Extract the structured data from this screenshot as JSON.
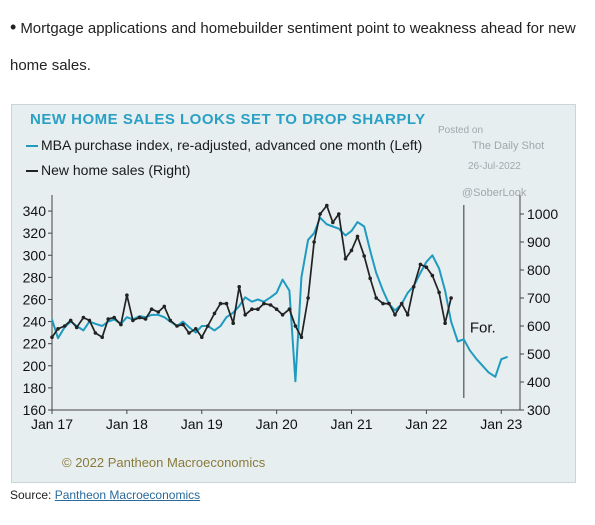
{
  "intro": {
    "bullet": "•",
    "text": "Mortgage applications and homebuilder sentiment point to weakness ahead for new home sales."
  },
  "source": {
    "label": "Source:",
    "link_text": "Pantheon Macroeconomics"
  },
  "watermark": {
    "posted_on": "Posted on",
    "brand": "The Daily Shot",
    "date": "26-Jul-2022",
    "handle": "@SoberLook"
  },
  "colors": {
    "mba": "#1f9bbf",
    "home_sales": "#222222",
    "title": "#2aa0c4",
    "background": "#e6eef0"
  },
  "chart_data": {
    "type": "line",
    "title": "NEW HOME SALES LOOKS SET TO DROP SHARPLY",
    "copyright": "© 2022 Pantheon Macroeconomics",
    "annotation": "For.",
    "x_tick_labels": [
      "Jan 17",
      "Jan 18",
      "Jan 19",
      "Jan 20",
      "Jan 21",
      "Jan 22",
      "Jan 23"
    ],
    "left_axis": {
      "ylim": [
        160,
        350
      ],
      "ticks": [
        160,
        180,
        200,
        220,
        240,
        260,
        280,
        300,
        320,
        340
      ]
    },
    "right_axis": {
      "ylim": [
        300,
        1050
      ],
      "ticks": [
        300,
        400,
        500,
        600,
        700,
        800,
        900,
        1000
      ]
    },
    "legend_placement": "top-left",
    "series": [
      {
        "name": "MBA purchase index, re-adjusted, advanced one month (Left)",
        "axis": "left",
        "x": [
          2017.0,
          2017.08,
          2017.17,
          2017.25,
          2017.33,
          2017.42,
          2017.5,
          2017.58,
          2017.67,
          2017.75,
          2017.83,
          2017.92,
          2018.0,
          2018.08,
          2018.17,
          2018.25,
          2018.33,
          2018.42,
          2018.5,
          2018.58,
          2018.67,
          2018.75,
          2018.83,
          2018.92,
          2019.0,
          2019.08,
          2019.17,
          2019.25,
          2019.33,
          2019.42,
          2019.5,
          2019.58,
          2019.67,
          2019.75,
          2019.83,
          2019.92,
          2020.0,
          2020.08,
          2020.17,
          2020.25,
          2020.33,
          2020.42,
          2020.5,
          2020.58,
          2020.67,
          2020.75,
          2020.83,
          2020.92,
          2021.0,
          2021.08,
          2021.17,
          2021.25,
          2021.33,
          2021.42,
          2021.5,
          2021.58,
          2021.67,
          2021.75,
          2021.83,
          2021.92,
          2022.0,
          2022.08,
          2022.17,
          2022.25,
          2022.33,
          2022.42,
          2022.5,
          2022.58,
          2022.67,
          2022.75,
          2022.83,
          2022.92,
          2023.0,
          2023.08
        ],
        "values": [
          242,
          225,
          235,
          240,
          236,
          232,
          240,
          238,
          236,
          240,
          242,
          238,
          244,
          242,
          245,
          244,
          246,
          246,
          244,
          240,
          236,
          240,
          235,
          230,
          236,
          236,
          232,
          236,
          244,
          248,
          254,
          262,
          258,
          260,
          258,
          262,
          266,
          278,
          268,
          186,
          280,
          314,
          320,
          334,
          328,
          326,
          324,
          318,
          322,
          330,
          326,
          304,
          284,
          268,
          256,
          250,
          256,
          266,
          272,
          284,
          294,
          300,
          288,
          268,
          240,
          222,
          224,
          214,
          206,
          200,
          194,
          190,
          206,
          208
        ]
      },
      {
        "name": "New home sales (Right)",
        "axis": "right",
        "x": [
          2017.0,
          2017.08,
          2017.17,
          2017.25,
          2017.33,
          2017.42,
          2017.5,
          2017.58,
          2017.67,
          2017.75,
          2017.83,
          2017.92,
          2018.0,
          2018.08,
          2018.17,
          2018.25,
          2018.33,
          2018.42,
          2018.5,
          2018.58,
          2018.67,
          2018.75,
          2018.83,
          2018.92,
          2019.0,
          2019.08,
          2019.17,
          2019.25,
          2019.33,
          2019.42,
          2019.5,
          2019.58,
          2019.67,
          2019.75,
          2019.83,
          2019.92,
          2020.0,
          2020.08,
          2020.17,
          2020.25,
          2020.33,
          2020.42,
          2020.5,
          2020.58,
          2020.67,
          2020.75,
          2020.83,
          2020.92,
          2021.0,
          2021.08,
          2021.17,
          2021.25,
          2021.33,
          2021.42,
          2021.5,
          2021.58,
          2021.67,
          2021.75,
          2021.83,
          2021.92,
          2022.0,
          2022.08,
          2022.17,
          2022.25,
          2022.33
        ],
        "values": [
          560,
          590,
          600,
          620,
          595,
          630,
          620,
          575,
          560,
          625,
          630,
          605,
          710,
          620,
          630,
          625,
          660,
          650,
          670,
          620,
          600,
          605,
          575,
          590,
          560,
          600,
          645,
          680,
          680,
          610,
          740,
          640,
          660,
          660,
          680,
          675,
          660,
          640,
          660,
          600,
          560,
          700,
          900,
          1000,
          1030,
          970,
          1000,
          840,
          870,
          920,
          850,
          770,
          700,
          680,
          680,
          640,
          680,
          640,
          740,
          820,
          810,
          780,
          720,
          610,
          700
        ]
      }
    ],
    "forecast_divider_x": 2022.5,
    "annotation_x": 2022.58,
    "annotation_y": 230
  }
}
